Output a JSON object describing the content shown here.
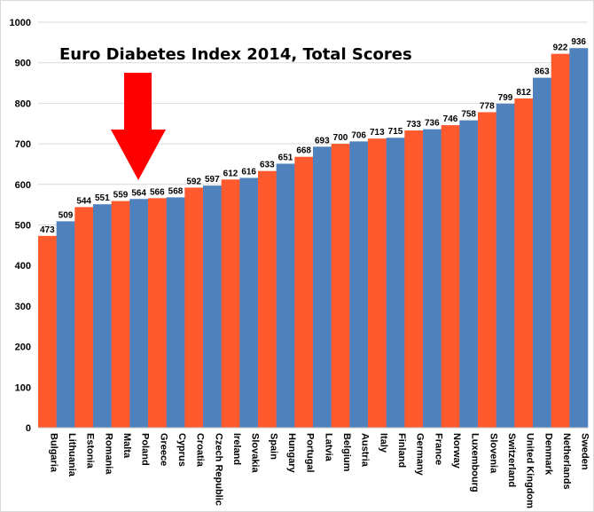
{
  "chart_data": {
    "type": "bar",
    "title": "Euro Diabetes Index 2014, Total Scores",
    "xlabel": "",
    "ylabel": "",
    "ylim": [
      0,
      1000
    ],
    "yticks": [
      0,
      100,
      200,
      300,
      400,
      500,
      600,
      700,
      800,
      900,
      1000
    ],
    "grid": true,
    "categories": [
      "Bulgaria",
      "Lithuania",
      "Estonia",
      "Romania",
      "Malta",
      "Poland",
      "Greece",
      "Cyprus",
      "Croatia",
      "Czech Republic",
      "Ireland",
      "Slovakia",
      "Spain",
      "Hungary",
      "Portugal",
      "Latvia",
      "Belgium",
      "Austria",
      "Italy",
      "Finland",
      "Germany",
      "France",
      "Norway",
      "Luxembourg",
      "Slovenia",
      "Switzerland",
      "United Kingdom",
      "Denmark",
      "Netherlands",
      "Sweden"
    ],
    "values": [
      473,
      509,
      544,
      551,
      559,
      564,
      566,
      568,
      592,
      597,
      612,
      616,
      633,
      651,
      668,
      693,
      700,
      706,
      713,
      715,
      733,
      736,
      746,
      758,
      778,
      799,
      812,
      863,
      922,
      936
    ],
    "bar_colors": [
      "#ff5a2e",
      "#4f81bd"
    ],
    "annotation": {
      "type": "arrow",
      "points_to": "Poland",
      "color": "#ff0000"
    }
  }
}
